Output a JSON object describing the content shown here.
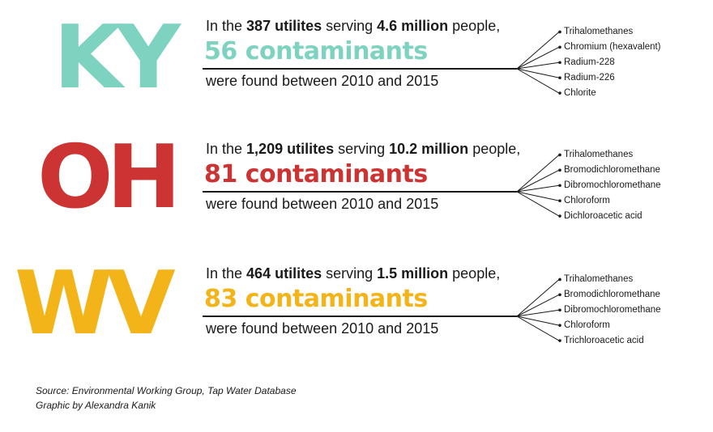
{
  "states": [
    {
      "abbr": "KY",
      "color": "#7dd3c0",
      "intro": "In the ",
      "utilities": "387 utilites",
      "serving": " serving ",
      "people": "4.6 million",
      "people_suffix": " people,",
      "contaminants": "56 contaminants",
      "found": "were found between 2010 and 2015",
      "top_contaminants": [
        "Trihalomethanes",
        "Chromium (hexavalent)",
        "Radium-228",
        "Radium-226",
        "Chlorite"
      ]
    },
    {
      "abbr": "OH",
      "color": "#cc3434",
      "intro": "In the ",
      "utilities": "1,209 utilites",
      "serving": " serving ",
      "people": "10.2 million",
      "people_suffix": " people,",
      "contaminants": "81 contaminants",
      "found": "were found between 2010 and 2015",
      "top_contaminants": [
        "Trihalomethanes",
        "Bromodichloromethane",
        "Dibromochloromethane",
        "Chloroform",
        "Dichloroacetic acid"
      ]
    },
    {
      "abbr": "WV",
      "color": "#f2b418",
      "intro": "In the ",
      "utilities": "464 utilites",
      "serving": " serving ",
      "people": "1.5 million",
      "people_suffix": " people,",
      "contaminants": "83 contaminants",
      "found": "were found between 2010 and 2015",
      "top_contaminants": [
        "Trihalomethanes",
        "Bromodichloromethane",
        "Dibromochloromethane",
        "Chloroform",
        "Trichloroacetic acid"
      ]
    }
  ],
  "footer": {
    "source": "Source: Environmental Working Group, Tap Water Database",
    "credit": "Graphic by Alexandra Kanik"
  }
}
